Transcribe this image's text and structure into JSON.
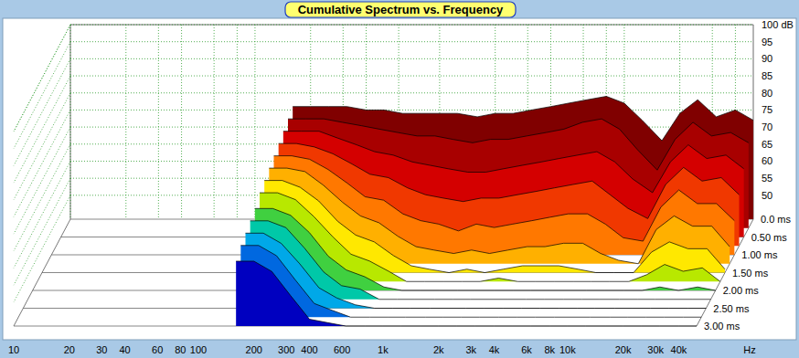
{
  "chart_data": {
    "type": "waterfall",
    "title": "Cumulative Spectrum vs. Frequency",
    "xlabel": "Hz",
    "log": "x",
    "grid": true,
    "x": [
      160,
      200,
      250,
      315,
      400,
      500,
      630,
      800,
      1000,
      1250,
      1600,
      2000,
      2500,
      3150,
      4000,
      5000,
      6300,
      8000,
      10000,
      12500,
      16000,
      20000,
      25000,
      31500,
      40000,
      50000
    ],
    "xlim": [
      10,
      50000
    ],
    "xticks": [
      10,
      20,
      30,
      40,
      60,
      80,
      100,
      200,
      300,
      400,
      600,
      {
        "value": 1000,
        "label": "1k"
      },
      {
        "value": 2000,
        "label": "2k"
      },
      {
        "value": 3000,
        "label": "3k"
      },
      {
        "value": 4000,
        "label": "4k"
      },
      {
        "value": 6000,
        "label": "6k"
      },
      {
        "value": 8000,
        "label": "8k"
      },
      {
        "value": 10000,
        "label": "10k"
      },
      {
        "value": 20000,
        "label": "20k"
      },
      {
        "value": 30000,
        "label": "30k"
      },
      {
        "value": 40000,
        "label": "40k"
      }
    ],
    "ylim": [
      43,
      100
    ],
    "yticks": [
      {
        "value": 100,
        "label": "100 dB"
      },
      95,
      90,
      85,
      80,
      75,
      70,
      65,
      60,
      55,
      50
    ],
    "zlim": [
      0,
      3
    ],
    "zticks": [
      {
        "value": 0,
        "label": "0.0 ms"
      },
      {
        "value": 0.5,
        "label": "0.50 ms"
      },
      {
        "value": 1,
        "label": "1.00 ms"
      },
      {
        "value": 1.5,
        "label": "1.50 ms"
      },
      {
        "value": 2,
        "label": "2.00 ms"
      },
      {
        "value": 2.5,
        "label": "2.50 ms"
      },
      {
        "value": 3,
        "label": "3.00 ms"
      }
    ],
    "series": [
      {
        "time": 0,
        "color": "#800000",
        "values": [
          76,
          76,
          76,
          76,
          75,
          75,
          74,
          74,
          74,
          74,
          73,
          74,
          74,
          75,
          76,
          77,
          78,
          79,
          77,
          72,
          66,
          74,
          78,
          73,
          75,
          72
        ]
      },
      {
        "time": 0.25,
        "color": "#a80000",
        "values": [
          75,
          75,
          75,
          74,
          73,
          72,
          71,
          70,
          70,
          69,
          68,
          69,
          69,
          70,
          71,
          72,
          74,
          75,
          72,
          66,
          60,
          69,
          74,
          70,
          71,
          68
        ]
      },
      {
        "time": 0.5,
        "color": "#d40000",
        "values": [
          74,
          74,
          74,
          72,
          70,
          68,
          67,
          65,
          64,
          63,
          62,
          62,
          63,
          64,
          65,
          66,
          67,
          68,
          65,
          60,
          56,
          65,
          70,
          66,
          67,
          63
        ]
      },
      {
        "time": 0.75,
        "color": "#f03800",
        "values": [
          73,
          73,
          72,
          70,
          67,
          64,
          63,
          60,
          58,
          57,
          56,
          57,
          57,
          58,
          59,
          60,
          61,
          62,
          58,
          54,
          51,
          61,
          66,
          62,
          63,
          58
        ]
      },
      {
        "time": 1,
        "color": "#ff7800",
        "values": [
          72,
          72,
          71,
          68,
          64,
          60,
          59,
          55,
          53,
          52,
          50,
          52,
          51,
          52,
          53,
          54,
          55,
          55,
          52,
          48,
          47,
          57,
          62,
          58,
          58,
          53
        ]
      },
      {
        "time": 1.25,
        "color": "#ffb000",
        "values": [
          71,
          71,
          70,
          66,
          61,
          57,
          55,
          51,
          48,
          47,
          46,
          47,
          46,
          47,
          48,
          48,
          49,
          49,
          46,
          44,
          43,
          53,
          57,
          54,
          54,
          48
        ]
      },
      {
        "time": 1.5,
        "color": "#ffe800",
        "values": [
          70,
          70,
          68,
          64,
          58,
          54,
          52,
          48,
          45,
          44,
          43,
          44,
          43,
          44,
          45,
          45,
          45,
          44,
          43,
          43,
          43,
          49,
          52,
          50,
          50,
          44
        ]
      },
      {
        "time": 1.75,
        "color": "#b8e800",
        "values": [
          69,
          69,
          67,
          62,
          56,
          51,
          49,
          46,
          43,
          43,
          43,
          43,
          43,
          44,
          43,
          43,
          43,
          43,
          43,
          43,
          43,
          45,
          48,
          46,
          47,
          43
        ]
      },
      {
        "time": 2,
        "color": "#40d040",
        "values": [
          67,
          67,
          65,
          60,
          53,
          49,
          47,
          44,
          43,
          43,
          43,
          43,
          43,
          43,
          43,
          43,
          43,
          43,
          43,
          43,
          43,
          43,
          44,
          43,
          44,
          43
        ]
      },
      {
        "time": 2.25,
        "color": "#00c8a8",
        "values": [
          66,
          66,
          64,
          58,
          51,
          47,
          46,
          43,
          43,
          43,
          43,
          43,
          43,
          43,
          43,
          43,
          43,
          43,
          43,
          43,
          43,
          43,
          43,
          43,
          43,
          43
        ]
      },
      {
        "time": 2.5,
        "color": "#00a8e8",
        "values": [
          65,
          65,
          62,
          56,
          49,
          46,
          44,
          43,
          43,
          43,
          43,
          43,
          43,
          43,
          43,
          43,
          43,
          43,
          43,
          43,
          43,
          43,
          43,
          43,
          43,
          43
        ]
      },
      {
        "time": 2.75,
        "color": "#0068e0",
        "values": [
          64,
          64,
          61,
          54,
          47,
          45,
          43,
          43,
          43,
          43,
          43,
          43,
          43,
          43,
          43,
          43,
          43,
          43,
          43,
          43,
          43,
          43,
          43,
          43,
          43,
          43
        ]
      },
      {
        "time": 3,
        "color": "#0000c0",
        "values": [
          62,
          62,
          59,
          52,
          45,
          44,
          43,
          43,
          43,
          43,
          43,
          43,
          43,
          43,
          43,
          43,
          43,
          43,
          43,
          43,
          43,
          43,
          43,
          43,
          43,
          43
        ]
      }
    ]
  }
}
